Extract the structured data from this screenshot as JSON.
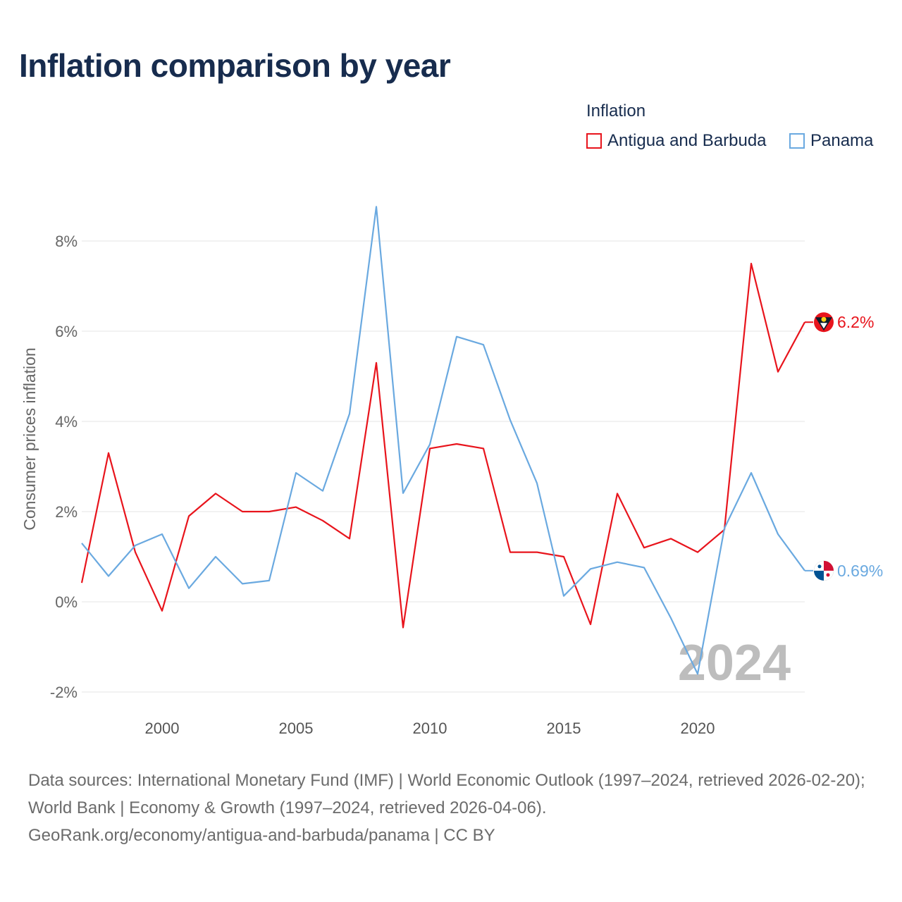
{
  "title": "Inflation comparison by year",
  "legend": {
    "title": "Inflation",
    "items": [
      {
        "name": "Antigua and Barbuda",
        "color": "#e8141c"
      },
      {
        "name": "Panama",
        "color": "#6aa9e0"
      }
    ]
  },
  "footer": {
    "line1": "Data sources: International Monetary Fund (IMF) | World Economic Outlook (1997–2024, retrieved 2026-02-20); World Bank | Economy & Growth (1997–2024, retrieved 2026-04-06).",
    "line2": "GeoRank.org/economy/antigua-and-barbuda/panama | CC BY"
  },
  "chart_data": {
    "type": "line",
    "title": "Inflation comparison by year",
    "xlabel": "",
    "ylabel": "Consumer prices inflation",
    "xlim": [
      1997,
      2024
    ],
    "ylim": [
      -2.5,
      8.5
    ],
    "grid": true,
    "legend_position": "top-right",
    "x_ticks": [
      2000,
      2005,
      2010,
      2015,
      2020
    ],
    "y_ticks": [
      {
        "value": 8,
        "label": "8%"
      },
      {
        "value": 6,
        "label": "6%"
      },
      {
        "value": 4,
        "label": "4%"
      },
      {
        "value": 2,
        "label": "2%"
      },
      {
        "value": 0,
        "label": "0%"
      },
      {
        "value": -2,
        "label": "-2%"
      }
    ],
    "year_watermark": "2024",
    "x": [
      1997,
      1998,
      1999,
      2000,
      2001,
      2002,
      2003,
      2004,
      2005,
      2006,
      2007,
      2008,
      2009,
      2010,
      2011,
      2012,
      2013,
      2014,
      2015,
      2016,
      2017,
      2018,
      2019,
      2020,
      2021,
      2022,
      2023,
      2024
    ],
    "series": [
      {
        "name": "Antigua and Barbuda",
        "color": "#e8141c",
        "values": [
          0.42,
          3.3,
          1.1,
          -0.2,
          1.9,
          2.4,
          2.0,
          2.0,
          2.1,
          1.8,
          1.4,
          5.3,
          -0.57,
          3.4,
          3.5,
          3.4,
          1.1,
          1.1,
          1.0,
          -0.5,
          2.4,
          1.2,
          1.4,
          1.1,
          1.6,
          7.5,
          5.1,
          6.2
        ],
        "end_label": "6.2%"
      },
      {
        "name": "Panama",
        "color": "#6aa9e0",
        "values": [
          1.3,
          0.57,
          1.25,
          1.5,
          0.3,
          1.0,
          0.4,
          0.47,
          2.86,
          2.46,
          4.17,
          8.76,
          2.41,
          3.49,
          5.88,
          5.7,
          4.03,
          2.63,
          0.13,
          0.73,
          0.88,
          0.76,
          -0.36,
          -1.6,
          1.63,
          2.86,
          1.5,
          0.69
        ],
        "end_label": "0.69%"
      }
    ]
  }
}
